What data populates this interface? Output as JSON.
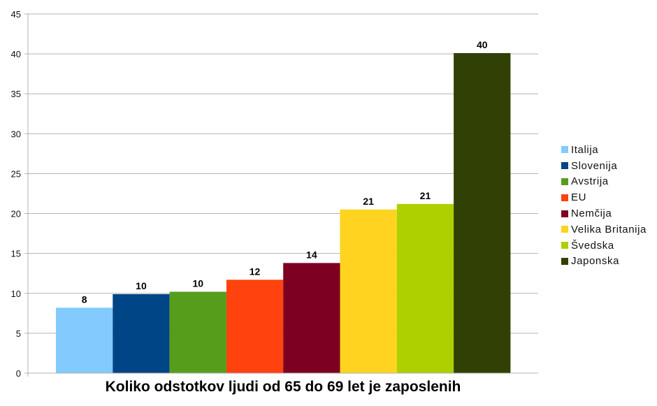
{
  "chart_data": {
    "type": "bar",
    "title": "Koliko odstotkov ljudi od 65 do 69 let je zaposlenih",
    "xlabel": "",
    "ylabel": "",
    "ylim": [
      0,
      45
    ],
    "yticks": [
      0,
      5,
      10,
      15,
      20,
      25,
      30,
      35,
      40,
      45
    ],
    "grid": true,
    "legend_position": "right",
    "categories": [
      "Italija",
      "Slovenija",
      "Avstrija",
      "EU",
      "Nemčija",
      "Velika Britanija",
      "Švedska",
      "Japonska"
    ],
    "values": [
      8.2,
      9.9,
      10.2,
      11.7,
      13.8,
      20.5,
      21.2,
      40.1
    ],
    "data_labels": [
      "8",
      "10",
      "10",
      "12",
      "14",
      "21",
      "21",
      "40"
    ],
    "colors": [
      "#83caff",
      "#004586",
      "#579d1c",
      "#ff420e",
      "#7e0021",
      "#ffd320",
      "#aecf00",
      "#314004"
    ]
  },
  "legend": {
    "items": [
      {
        "label": "Italija",
        "color": "#83caff"
      },
      {
        "label": "Slovenija",
        "color": "#004586"
      },
      {
        "label": "Avstrija",
        "color": "#579d1c"
      },
      {
        "label": "EU",
        "color": "#ff420e"
      },
      {
        "label": "Nemčija",
        "color": "#7e0021"
      },
      {
        "label": "Velika Britanija",
        "color": "#ffd320"
      },
      {
        "label": "Švedska",
        "color": "#aecf00"
      },
      {
        "label": "Japonska",
        "color": "#314004"
      }
    ]
  },
  "title": "Koliko odstotkov ljudi od 65 do 69 let je zaposlenih"
}
